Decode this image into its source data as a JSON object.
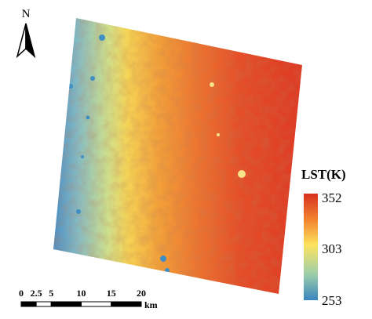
{
  "north_arrow": {
    "label": "N"
  },
  "legend": {
    "title": "LST(K)",
    "labels": [
      352,
      303,
      253
    ]
  },
  "scale_bar": {
    "ticks": [
      0,
      2.5,
      5,
      10,
      15,
      20
    ],
    "unit": "km"
  }
}
